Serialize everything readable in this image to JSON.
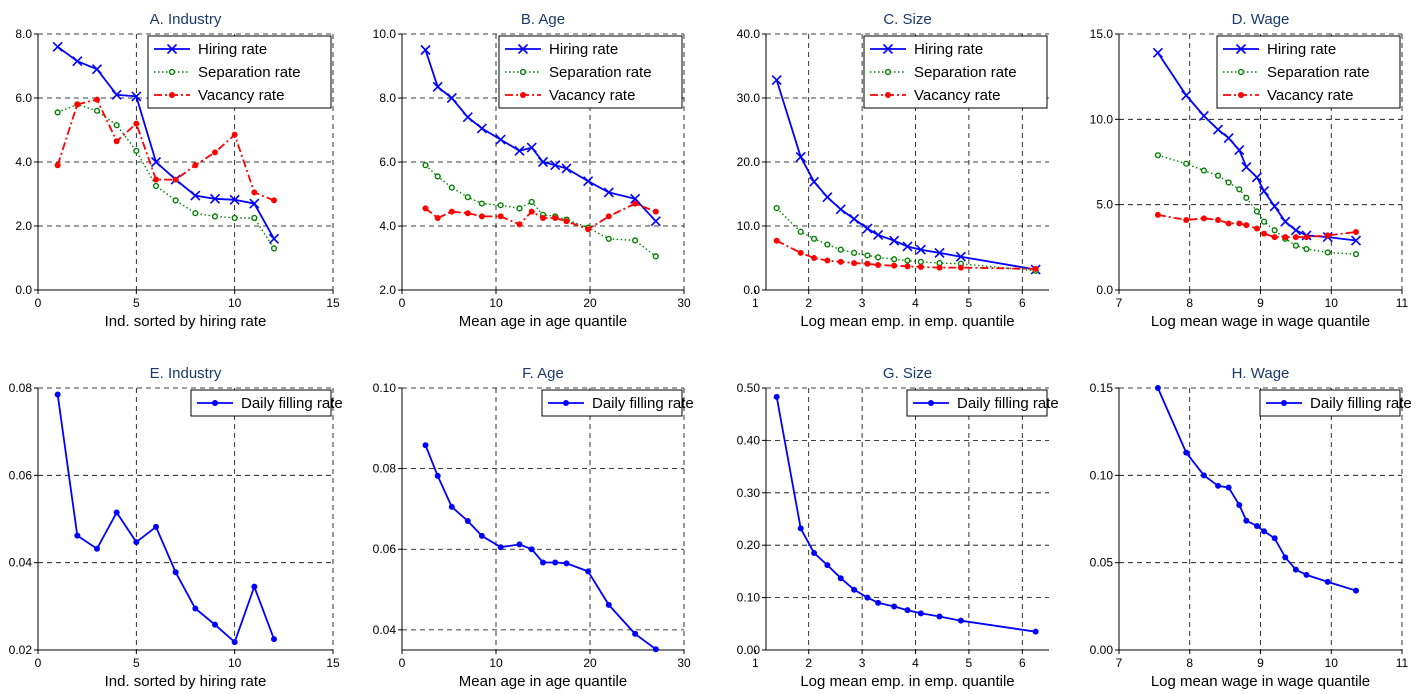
{
  "chart_data": [
    {
      "type": "line",
      "title": "A. Industry",
      "xlabel": "Ind. sorted by hiring rate",
      "ylabel": "",
      "xlim": [
        0,
        15
      ],
      "ylim": [
        0,
        8
      ],
      "xticks": [
        0,
        5,
        10,
        15
      ],
      "yticks": [
        0,
        2,
        4,
        6,
        8
      ],
      "ytick_decimals": 1,
      "grid": true,
      "legend": "top-right",
      "series": [
        {
          "name": "Hiring rate",
          "style": "solid-x",
          "color": "#0000ff",
          "x": [
            1,
            2,
            3,
            4,
            5,
            6,
            7,
            8,
            9,
            10,
            11,
            12
          ],
          "y": [
            7.6,
            7.15,
            6.9,
            6.1,
            6.05,
            4.0,
            3.45,
            2.95,
            2.85,
            2.82,
            2.7,
            1.6
          ]
        },
        {
          "name": "Separation rate",
          "style": "dotted-circle",
          "color": "#008000",
          "x": [
            1,
            2,
            3,
            4,
            5,
            6,
            7,
            8,
            9,
            10,
            11,
            12
          ],
          "y": [
            5.55,
            5.8,
            5.6,
            5.15,
            4.35,
            3.25,
            2.8,
            2.4,
            2.3,
            2.25,
            2.25,
            1.3
          ]
        },
        {
          "name": "Vacancy rate",
          "style": "dash-dot",
          "color": "#ff0000",
          "x": [
            1,
            2,
            3,
            4,
            5,
            6,
            7,
            8,
            9,
            10,
            11,
            12
          ],
          "y": [
            3.9,
            5.8,
            5.95,
            4.65,
            5.2,
            3.45,
            3.45,
            3.9,
            4.3,
            4.85,
            3.05,
            2.8
          ]
        }
      ]
    },
    {
      "type": "line",
      "title": "B. Age",
      "xlabel": "Mean age in age quantile",
      "ylabel": "",
      "xlim": [
        0,
        30
      ],
      "ylim": [
        2,
        10
      ],
      "xticks": [
        0,
        10,
        20,
        30
      ],
      "yticks": [
        2,
        4,
        6,
        8,
        10
      ],
      "ytick_decimals": 1,
      "grid": true,
      "legend": "top-right",
      "series": [
        {
          "name": "Hiring rate",
          "style": "solid-x",
          "color": "#0000ff",
          "x": [
            2.5,
            3.8,
            5.3,
            7.0,
            8.5,
            10.5,
            12.5,
            13.8,
            15.0,
            16.3,
            17.5,
            19.8,
            22.0,
            24.8,
            27.0
          ],
          "y": [
            9.5,
            8.35,
            8.0,
            7.4,
            7.05,
            6.7,
            6.35,
            6.45,
            6.0,
            5.9,
            5.8,
            5.4,
            5.05,
            4.85,
            4.15
          ]
        },
        {
          "name": "Separation rate",
          "style": "dotted-circle",
          "color": "#008000",
          "x": [
            2.5,
            3.8,
            5.3,
            7.0,
            8.5,
            10.5,
            12.5,
            13.8,
            15.0,
            16.3,
            17.5,
            19.8,
            22.0,
            24.8,
            27.0
          ],
          "y": [
            5.9,
            5.55,
            5.2,
            4.9,
            4.7,
            4.65,
            4.55,
            4.75,
            4.35,
            4.3,
            4.2,
            3.95,
            3.6,
            3.55,
            3.05
          ]
        },
        {
          "name": "Vacancy rate",
          "style": "dash-dot",
          "color": "#ff0000",
          "x": [
            2.5,
            3.8,
            5.3,
            7.0,
            8.5,
            10.5,
            12.5,
            13.8,
            15.0,
            16.3,
            17.5,
            19.8,
            22.0,
            24.8,
            27.0
          ],
          "y": [
            4.55,
            4.25,
            4.45,
            4.4,
            4.3,
            4.3,
            4.05,
            4.45,
            4.25,
            4.25,
            4.15,
            3.9,
            4.3,
            4.7,
            4.45
          ]
        }
      ]
    },
    {
      "type": "line",
      "title": "C. Size",
      "xlabel": "Log mean emp. in emp. quantile",
      "ylabel": "",
      "xlim": [
        1.2,
        6.5
      ],
      "ylim": [
        0,
        40
      ],
      "xticks": [
        1,
        2,
        3,
        4,
        5,
        6
      ],
      "yticks": [
        0,
        10,
        20,
        30,
        40
      ],
      "ytick_decimals": 1,
      "grid": true,
      "legend": "top-right",
      "series": [
        {
          "name": "Hiring rate",
          "style": "solid-x",
          "color": "#0000ff",
          "x": [
            1.4,
            1.85,
            2.1,
            2.35,
            2.6,
            2.85,
            3.1,
            3.3,
            3.6,
            3.85,
            4.1,
            4.45,
            4.85,
            6.25
          ],
          "y": [
            32.8,
            20.8,
            16.9,
            14.5,
            12.6,
            11.1,
            9.6,
            8.6,
            7.7,
            6.8,
            6.3,
            5.8,
            5.2,
            3.2
          ]
        },
        {
          "name": "Separation rate",
          "style": "dotted-circle",
          "color": "#008000",
          "x": [
            1.4,
            1.85,
            2.1,
            2.35,
            2.6,
            2.85,
            3.1,
            3.3,
            3.6,
            3.85,
            4.1,
            4.45,
            4.85,
            6.25
          ],
          "y": [
            12.8,
            9.1,
            8.0,
            7.1,
            6.3,
            5.8,
            5.4,
            5.1,
            4.8,
            4.6,
            4.4,
            4.2,
            4.1,
            3.0
          ]
        },
        {
          "name": "Vacancy rate",
          "style": "dash-dot",
          "color": "#ff0000",
          "x": [
            1.4,
            1.85,
            2.1,
            2.35,
            2.6,
            2.85,
            3.1,
            3.3,
            3.6,
            3.85,
            4.1,
            4.45,
            4.85,
            6.25
          ],
          "y": [
            7.7,
            5.8,
            5.0,
            4.6,
            4.4,
            4.2,
            4.1,
            3.9,
            3.8,
            3.7,
            3.6,
            3.5,
            3.5,
            3.3
          ]
        }
      ]
    },
    {
      "type": "line",
      "title": "D. Wage",
      "xlabel": "Log mean wage in wage quantile",
      "ylabel": "",
      "xlim": [
        7,
        11
      ],
      "ylim": [
        0,
        15
      ],
      "xticks": [
        7,
        8,
        9,
        10,
        11
      ],
      "yticks": [
        0,
        5,
        10,
        15
      ],
      "ytick_decimals": 1,
      "grid": true,
      "legend": "top-right",
      "series": [
        {
          "name": "Hiring rate",
          "style": "solid-x",
          "color": "#0000ff",
          "x": [
            7.55,
            7.95,
            8.2,
            8.4,
            8.55,
            8.7,
            8.8,
            8.95,
            9.05,
            9.2,
            9.35,
            9.5,
            9.65,
            9.95,
            10.35
          ],
          "y": [
            13.9,
            11.4,
            10.2,
            9.4,
            8.9,
            8.2,
            7.2,
            6.6,
            5.8,
            4.9,
            4.0,
            3.5,
            3.2,
            3.1,
            2.9
          ]
        },
        {
          "name": "Separation rate",
          "style": "dotted-circle",
          "color": "#008000",
          "x": [
            7.55,
            7.95,
            8.2,
            8.4,
            8.55,
            8.7,
            8.8,
            8.95,
            9.05,
            9.2,
            9.35,
            9.5,
            9.65,
            9.95,
            10.35
          ],
          "y": [
            7.9,
            7.4,
            7.0,
            6.7,
            6.3,
            5.9,
            5.4,
            4.6,
            4.0,
            3.5,
            3.0,
            2.6,
            2.4,
            2.2,
            2.1
          ]
        },
        {
          "name": "Vacancy rate",
          "style": "dash-dot",
          "color": "#ff0000",
          "x": [
            7.55,
            7.95,
            8.2,
            8.4,
            8.55,
            8.7,
            8.8,
            8.95,
            9.05,
            9.2,
            9.35,
            9.5,
            9.65,
            9.95,
            10.35
          ],
          "y": [
            4.4,
            4.1,
            4.2,
            4.1,
            3.9,
            3.9,
            3.8,
            3.6,
            3.3,
            3.1,
            3.1,
            3.1,
            3.1,
            3.2,
            3.4
          ]
        }
      ]
    },
    {
      "type": "line",
      "title": "E. Industry",
      "xlabel": "Ind. sorted by hiring rate",
      "ylabel": "",
      "xlim": [
        0,
        15
      ],
      "ylim": [
        0.02,
        0.08
      ],
      "xticks": [
        0,
        5,
        10,
        15
      ],
      "yticks": [
        0.02,
        0.04,
        0.06,
        0.08
      ],
      "ytick_decimals": 2,
      "grid": true,
      "legend": "top-right",
      "series": [
        {
          "name": "Daily filling rate",
          "style": "solid-dot",
          "color": "#0000ff",
          "x": [
            1,
            2,
            3,
            4,
            5,
            6,
            7,
            8,
            9,
            10,
            11,
            12
          ],
          "y": [
            0.0785,
            0.0462,
            0.0432,
            0.0515,
            0.0447,
            0.0482,
            0.0378,
            0.0295,
            0.0258,
            0.0218,
            0.0345,
            0.0225
          ]
        }
      ]
    },
    {
      "type": "line",
      "title": "F. Age",
      "xlabel": "Mean age in age quantile",
      "ylabel": "",
      "xlim": [
        0,
        30
      ],
      "ylim": [
        0.035,
        0.1
      ],
      "xticks": [
        0,
        10,
        20,
        30
      ],
      "yticks": [
        0.04,
        0.06,
        0.08,
        0.1
      ],
      "ytick_decimals": 2,
      "grid": true,
      "legend": "top-right",
      "series": [
        {
          "name": "Daily filling rate",
          "style": "solid-dot",
          "color": "#0000ff",
          "x": [
            2.5,
            3.8,
            5.3,
            7.0,
            8.5,
            10.5,
            12.5,
            13.8,
            15.0,
            16.3,
            17.5,
            19.8,
            22.0,
            24.8,
            27.0
          ],
          "y": [
            0.0858,
            0.0782,
            0.0705,
            0.067,
            0.0633,
            0.0605,
            0.0612,
            0.06,
            0.0567,
            0.0567,
            0.0565,
            0.0545,
            0.0462,
            0.039,
            0.0352
          ]
        }
      ]
    },
    {
      "type": "line",
      "title": "G. Size",
      "xlabel": "Log mean emp. in emp. quantile",
      "ylabel": "",
      "xlim": [
        1.2,
        6.5
      ],
      "ylim": [
        0,
        0.5
      ],
      "xticks": [
        1,
        2,
        3,
        4,
        5,
        6
      ],
      "yticks": [
        0,
        0.1,
        0.2,
        0.3,
        0.4,
        0.5
      ],
      "ytick_decimals": 2,
      "grid": true,
      "legend": "top-right",
      "series": [
        {
          "name": "Daily filling rate",
          "style": "solid-dot",
          "color": "#0000ff",
          "x": [
            1.4,
            1.85,
            2.1,
            2.35,
            2.6,
            2.85,
            3.1,
            3.3,
            3.6,
            3.85,
            4.1,
            4.45,
            4.85,
            6.25
          ],
          "y": [
            0.483,
            0.232,
            0.185,
            0.162,
            0.137,
            0.115,
            0.1,
            0.09,
            0.083,
            0.076,
            0.07,
            0.064,
            0.056,
            0.035
          ]
        }
      ]
    },
    {
      "type": "line",
      "title": "H. Wage",
      "xlabel": "Log mean wage in wage quantile",
      "ylabel": "",
      "xlim": [
        7,
        11
      ],
      "ylim": [
        0,
        0.15
      ],
      "xticks": [
        7,
        8,
        9,
        10,
        11
      ],
      "yticks": [
        0,
        0.05,
        0.1,
        0.15
      ],
      "ytick_decimals": 2,
      "grid": true,
      "legend": "top-right",
      "series": [
        {
          "name": "Daily filling rate",
          "style": "solid-dot",
          "color": "#0000ff",
          "x": [
            7.55,
            7.95,
            8.2,
            8.4,
            8.55,
            8.7,
            8.8,
            8.95,
            9.05,
            9.2,
            9.35,
            9.5,
            9.65,
            9.95,
            10.35
          ],
          "y": [
            0.15,
            0.113,
            0.1,
            0.094,
            0.093,
            0.083,
            0.074,
            0.071,
            0.068,
            0.064,
            0.053,
            0.046,
            0.043,
            0.039,
            0.034
          ]
        }
      ]
    }
  ]
}
